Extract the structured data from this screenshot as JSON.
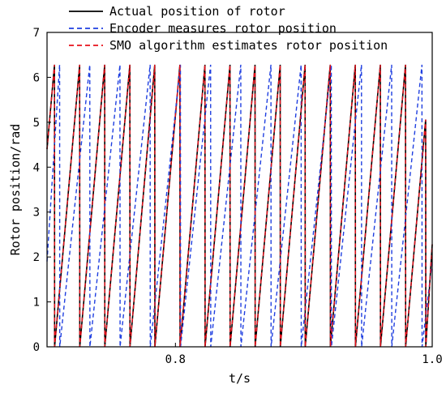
{
  "chart_data": {
    "type": "line",
    "xlabel": "t/s",
    "ylabel": "Rotor position/rad",
    "xlim": [
      0.7,
      1.0
    ],
    "ylim": [
      0,
      7
    ],
    "x_ticks": [
      {
        "value": 0.8,
        "label": "0.8"
      },
      {
        "value": 1.0,
        "label": "1.0"
      }
    ],
    "y_ticks": [
      {
        "value": 0,
        "label": "0"
      },
      {
        "value": 1,
        "label": "1"
      },
      {
        "value": 2,
        "label": "2"
      },
      {
        "value": 3,
        "label": "3"
      },
      {
        "value": 4,
        "label": "4"
      },
      {
        "value": 5,
        "label": "5"
      },
      {
        "value": 6,
        "label": "6"
      },
      {
        "value": 7,
        "label": "7"
      }
    ],
    "grid": false,
    "legend_position": "top",
    "wrap_max": 6.28,
    "series": [
      {
        "name": "Actual position of rotor",
        "color": "#000000",
        "dash": "solid",
        "x": [
          0.7,
          0.7058,
          0.7059,
          0.7254,
          0.7255,
          0.7449,
          0.745,
          0.7645,
          0.7646,
          0.7839,
          0.784,
          0.8035,
          0.8036,
          0.823,
          0.8231,
          0.8425,
          0.8426,
          0.862,
          0.8621,
          0.8816,
          0.8817,
          0.901,
          0.9011,
          0.9206,
          0.9207,
          0.9401,
          0.9402,
          0.9596,
          0.9597,
          0.9792,
          0.9793,
          0.9949,
          0.995,
          1.0
        ],
        "y": [
          4.4,
          6.28,
          0,
          6.28,
          0,
          6.28,
          0,
          6.28,
          0,
          6.28,
          0,
          6.28,
          0,
          6.28,
          0,
          6.28,
          0,
          6.28,
          0,
          6.28,
          0,
          6.28,
          0,
          6.28,
          0,
          6.28,
          0,
          6.28,
          0,
          6.28,
          0,
          5.06,
          0,
          2.28
        ]
      },
      {
        "name": "Encoder measures rotor position",
        "color": "#1f3fe0",
        "dash": "dashed",
        "x": [
          0.7,
          0.7098,
          0.7099,
          0.7333,
          0.7334,
          0.7568,
          0.7569,
          0.7803,
          0.7804,
          0.8039,
          0.804,
          0.8274,
          0.8275,
          0.8509,
          0.851,
          0.8744,
          0.8745,
          0.8979,
          0.898,
          0.9214,
          0.9215,
          0.9449,
          0.945,
          0.9684,
          0.9685,
          0.992,
          0.9921,
          1.0
        ],
        "y": [
          1.9,
          6.28,
          0,
          6.28,
          0,
          6.28,
          0,
          6.28,
          0,
          6.28,
          0,
          6.28,
          0,
          6.28,
          0,
          6.28,
          0,
          6.28,
          0,
          6.28,
          0,
          6.28,
          0,
          6.28,
          0,
          6.28,
          0,
          1.9
        ]
      },
      {
        "name": "SMO algorithm estimates rotor position",
        "color": "#e8101a",
        "dash": "dashed",
        "x": [
          0.7,
          0.7058,
          0.7059,
          0.7254,
          0.7255,
          0.7449,
          0.745,
          0.7645,
          0.7646,
          0.7839,
          0.784,
          0.8035,
          0.8036,
          0.823,
          0.8231,
          0.8425,
          0.8426,
          0.862,
          0.8621,
          0.8816,
          0.8817,
          0.901,
          0.9011,
          0.9206,
          0.9207,
          0.9401,
          0.9402,
          0.9596,
          0.9597,
          0.9792,
          0.9793,
          0.9949,
          0.995,
          1.0
        ],
        "y": [
          4.4,
          6.28,
          0,
          6.28,
          0,
          6.28,
          0,
          6.28,
          0,
          6.28,
          0,
          6.28,
          0,
          6.28,
          0,
          6.28,
          0,
          6.28,
          0,
          6.28,
          0,
          6.28,
          0,
          6.28,
          0,
          6.28,
          0,
          6.28,
          0,
          6.28,
          0,
          5.06,
          0,
          2.28
        ]
      }
    ]
  }
}
